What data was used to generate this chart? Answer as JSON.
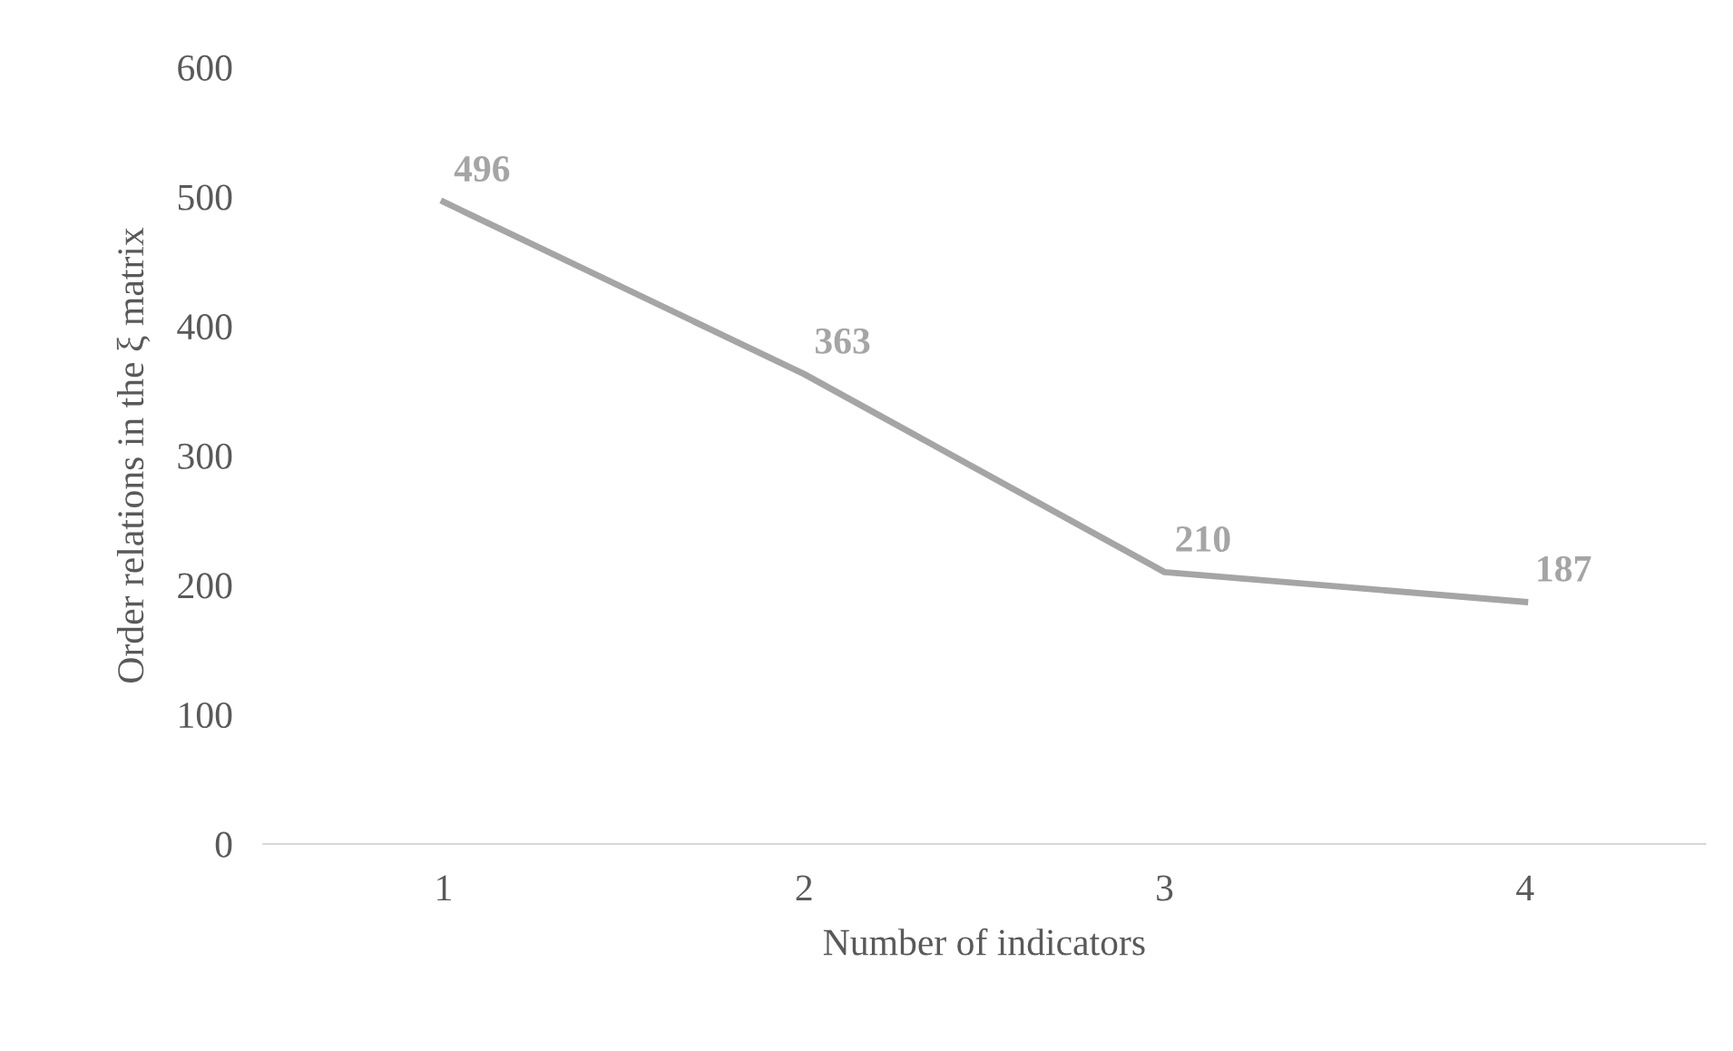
{
  "chart_data": {
    "type": "line",
    "xlabel": "Number of indicators",
    "ylabel": "Order relations in the ξ matrix",
    "categories": [
      "1",
      "2",
      "3",
      "4"
    ],
    "series": [
      {
        "color": "#a5a5a5",
        "values": [
          496,
          363,
          210,
          187
        ]
      }
    ],
    "ylim": [
      0,
      600
    ],
    "yticks": [
      0,
      100,
      200,
      300,
      400,
      500,
      600
    ],
    "data_labels": true,
    "line_style": "solid"
  }
}
